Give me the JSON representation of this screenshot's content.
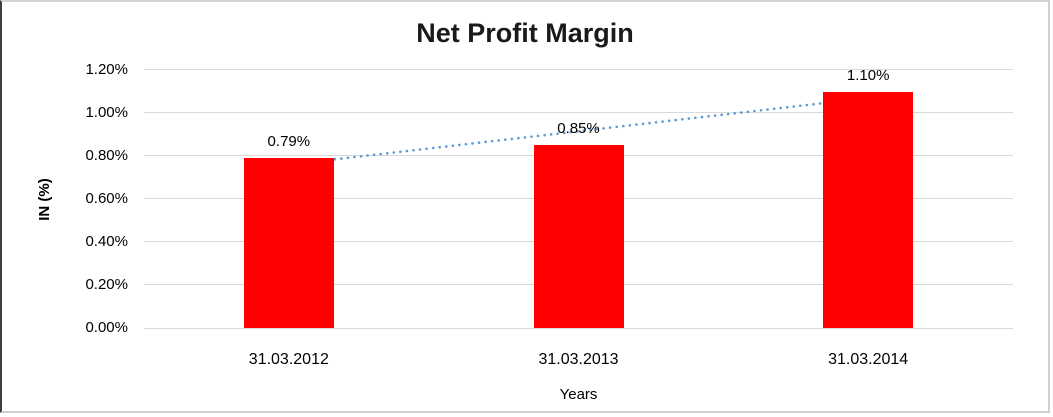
{
  "chart_data": {
    "type": "bar",
    "title": "Net Profit Margin",
    "xlabel": "Years",
    "ylabel": "IN (%)",
    "categories": [
      "31.03.2012",
      "31.03.2013",
      "31.03.2014"
    ],
    "values": [
      0.79,
      0.85,
      1.1
    ],
    "data_labels": [
      "0.79%",
      "0.85%",
      "1.10%"
    ],
    "ylim": [
      0,
      1.2
    ],
    "ytick_values": [
      0,
      0.2,
      0.4,
      0.6,
      0.8,
      1.0,
      1.2
    ],
    "ytick_labels": [
      "0.00%",
      "0.20%",
      "0.40%",
      "0.60%",
      "0.80%",
      "1.00%",
      "1.20%"
    ],
    "grid": "horizontal",
    "legend": "none",
    "bar_color": "#FF0000",
    "gridline_color": "#D9D9D9",
    "title_color": "#1A1A1A",
    "trendline": {
      "type": "linear",
      "style": "dotted",
      "color": "#5B9BD5",
      "values": [
        0.76,
        0.91,
        1.07
      ]
    }
  }
}
